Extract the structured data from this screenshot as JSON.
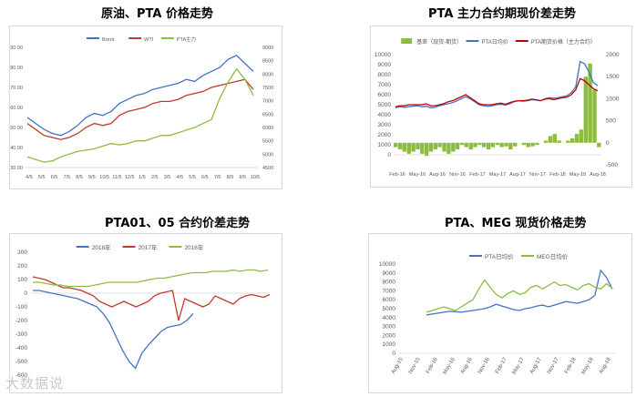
{
  "titles": {
    "c1": "原油、PTA 价格走势",
    "c2": "PTA 主力合约期现价差走势",
    "c3": "PTA01、05 合约价差走势",
    "c4": "PTA、MEG 现货价格走势"
  },
  "watermark": "大数据说",
  "chart_data": [
    {
      "type": "line",
      "legend": [
        "Brent",
        "WTI",
        "PTA主力"
      ],
      "legend_position": "top",
      "x_ticks": [
        "4/5",
        "5/5",
        "6/5",
        "7/5",
        "8/5",
        "9/5",
        "10/5",
        "11/5",
        "12/5",
        "1/5",
        "2/5",
        "3/5",
        "4/5",
        "5/5",
        "6/5",
        "7/5",
        "8/5",
        "9/5",
        "10/5"
      ],
      "y_left": {
        "min": 30,
        "max": 90,
        "ticks": [
          30,
          40,
          50,
          60,
          70,
          80,
          90
        ]
      },
      "y_right": {
        "min": 4500,
        "max": 9000,
        "ticks": [
          4500,
          5000,
          5500,
          6000,
          6500,
          7000,
          7500,
          8000,
          8500,
          9000
        ]
      },
      "series": [
        {
          "name": "Brent",
          "axis": "left",
          "color": "#4472c4",
          "values": [
            55,
            52,
            49,
            47,
            46,
            48,
            51,
            55,
            57,
            56,
            58,
            62,
            64,
            66,
            67,
            69,
            70,
            71,
            72,
            74,
            73,
            76,
            78,
            80,
            84,
            86,
            82,
            78
          ]
        },
        {
          "name": "WTI",
          "axis": "left",
          "color": "#c0392b",
          "values": [
            52,
            49,
            46,
            45,
            44,
            45,
            47,
            50,
            52,
            51,
            52,
            56,
            58,
            59,
            60,
            62,
            63,
            63,
            64,
            66,
            67,
            68,
            70,
            71,
            72,
            73,
            74,
            69
          ]
        },
        {
          "name": "PTA主力",
          "axis": "right",
          "color": "#8cbd3f",
          "values": [
            4900,
            4800,
            4700,
            4750,
            4900,
            5000,
            5100,
            5150,
            5200,
            5300,
            5400,
            5350,
            5400,
            5500,
            5500,
            5600,
            5700,
            5700,
            5800,
            5900,
            6000,
            6150,
            6300,
            7100,
            7700,
            8200,
            7800,
            7200
          ]
        }
      ]
    },
    {
      "type": "line+bar",
      "legend": [
        "基差（现货-期货）",
        "PTA日均价",
        "PTA期货价格（主力合约）"
      ],
      "legend_position": "top",
      "x_ticks": [
        "Feb-16",
        "May-16",
        "Aug-16",
        "Nov-16",
        "Feb-17",
        "May-17",
        "Aug-17",
        "Nov-17",
        "Feb-18",
        "May-18",
        "Aug-18"
      ],
      "y_left": {
        "min": 0,
        "max": 10000,
        "ticks": [
          0,
          1000,
          2000,
          3000,
          4000,
          5000,
          6000,
          7000,
          8000,
          9000,
          10000
        ]
      },
      "y_right": {
        "min": -500,
        "max": 2000,
        "ticks": [
          -500,
          0,
          500,
          1000,
          1500,
          2000
        ]
      },
      "series": [
        {
          "name": "基差（现货-期货）",
          "axis": "right",
          "kind": "bar",
          "color": "#8cbd3f",
          "values": [
            -100,
            -150,
            -200,
            -250,
            -200,
            -150,
            -250,
            -300,
            -200,
            -150,
            -100,
            -200,
            -250,
            -200,
            -150,
            -50,
            -100,
            -150,
            -100,
            -50,
            -100,
            -150,
            -100,
            -50,
            -100,
            -80,
            -150,
            -80,
            0,
            -50,
            -100,
            -80,
            -50,
            0,
            50,
            150,
            200,
            50,
            0,
            50,
            100,
            200,
            300,
            1500,
            1800,
            1200,
            -100
          ]
        },
        {
          "name": "PTA日均价",
          "axis": "left",
          "kind": "line",
          "color": "#4472c4",
          "values": [
            4700,
            4800,
            4750,
            4800,
            4850,
            4900,
            4800,
            4850,
            4700,
            4750,
            4900,
            5000,
            5100,
            5200,
            5400,
            5600,
            5800,
            5600,
            5300,
            5000,
            4900,
            4850,
            4900,
            5000,
            5050,
            4950,
            5100,
            5300,
            5400,
            5350,
            5400,
            5500,
            5450,
            5400,
            5600,
            5700,
            5650,
            5700,
            5800,
            5900,
            6200,
            6800,
            9300,
            9100,
            8300,
            7200,
            6900
          ]
        },
        {
          "name": "PTA期货价格（主力合约）",
          "axis": "left",
          "kind": "line",
          "color": "#c00000",
          "values": [
            4800,
            4900,
            4900,
            5000,
            5000,
            5000,
            5000,
            5100,
            4900,
            4900,
            5000,
            5100,
            5300,
            5400,
            5600,
            5800,
            6000,
            5700,
            5400,
            5100,
            5000,
            5000,
            5000,
            5100,
            5150,
            5050,
            5200,
            5350,
            5400,
            5400,
            5450,
            5550,
            5500,
            5400,
            5550,
            5600,
            5500,
            5600,
            5700,
            5750,
            6000,
            6500,
            7600,
            7400,
            7000,
            6600,
            6400
          ]
        }
      ]
    },
    {
      "type": "line",
      "legend": [
        "2018年",
        "2017年",
        "2016年"
      ],
      "legend_position": "top",
      "y": {
        "min": -600,
        "max": 300,
        "ticks": [
          -600,
          -500,
          -400,
          -300,
          -200,
          -100,
          0,
          100,
          200,
          300
        ]
      },
      "series": [
        {
          "name": "2018年",
          "color": "#4472c4",
          "values": [
            20,
            20,
            10,
            0,
            -10,
            -20,
            -30,
            -40,
            -60,
            -80,
            -100,
            -150,
            -220,
            -320,
            -420,
            -500,
            -550,
            -440,
            -380,
            -330,
            -280,
            -250,
            -240,
            -230,
            -200,
            -150
          ]
        },
        {
          "name": "2017年",
          "color": "#c0392b",
          "values": [
            120,
            110,
            100,
            80,
            60,
            40,
            40,
            30,
            20,
            0,
            -20,
            -60,
            -80,
            -100,
            -80,
            -60,
            -80,
            -100,
            -80,
            -60,
            -20,
            0,
            10,
            20,
            -200,
            -40,
            -60,
            -80,
            -100,
            -80,
            -20,
            -40,
            -60,
            -80,
            -40,
            -20,
            -10,
            -20,
            -30,
            -10
          ]
        },
        {
          "name": "2016年",
          "color": "#8cbd3f",
          "values": [
            80,
            80,
            70,
            60,
            60,
            50,
            50,
            50,
            50,
            60,
            70,
            80,
            80,
            80,
            80,
            80,
            90,
            100,
            110,
            110,
            120,
            130,
            140,
            150,
            150,
            150,
            160,
            160,
            160,
            170,
            160,
            170,
            170,
            160,
            170
          ]
        }
      ]
    },
    {
      "type": "line",
      "legend": [
        "PTA日均价",
        "MEG日均价"
      ],
      "legend_position": "top",
      "x_ticks": [
        "Aug-15",
        "Nov-15",
        "Feb-16",
        "May-16",
        "Aug-16",
        "Nov-16",
        "Feb-17",
        "May-17",
        "Aug-17",
        "Nov-17",
        "Feb-18",
        "May-18",
        "Aug-18"
      ],
      "y": {
        "min": 0,
        "max": 10000,
        "ticks": [
          0,
          1000,
          2000,
          3000,
          4000,
          5000,
          6000,
          7000,
          8000,
          9000,
          10000
        ]
      },
      "series": [
        {
          "name": "PTA日均价",
          "color": "#4472c4",
          "values": [
            4300,
            4400,
            4500,
            4600,
            4700,
            4650,
            4600,
            4700,
            4800,
            4900,
            5000,
            5200,
            5500,
            5300,
            5100,
            4900,
            4800,
            5000,
            5100,
            5300,
            5400,
            5200,
            5400,
            5600,
            5800,
            5700,
            5600,
            5800,
            6000,
            6500,
            9300,
            8500,
            7200
          ]
        },
        {
          "name": "MEG日均价",
          "color": "#8cbd3f",
          "values": [
            4600,
            4800,
            5000,
            5200,
            5000,
            4800,
            5200,
            5600,
            6000,
            7200,
            8200,
            7400,
            6600,
            6200,
            6700,
            7000,
            6600,
            6800,
            7400,
            7600,
            7200,
            7600,
            8000,
            7600,
            7700,
            7400,
            7100,
            7600,
            7800,
            7400,
            7200,
            7800,
            7300
          ]
        }
      ]
    }
  ]
}
